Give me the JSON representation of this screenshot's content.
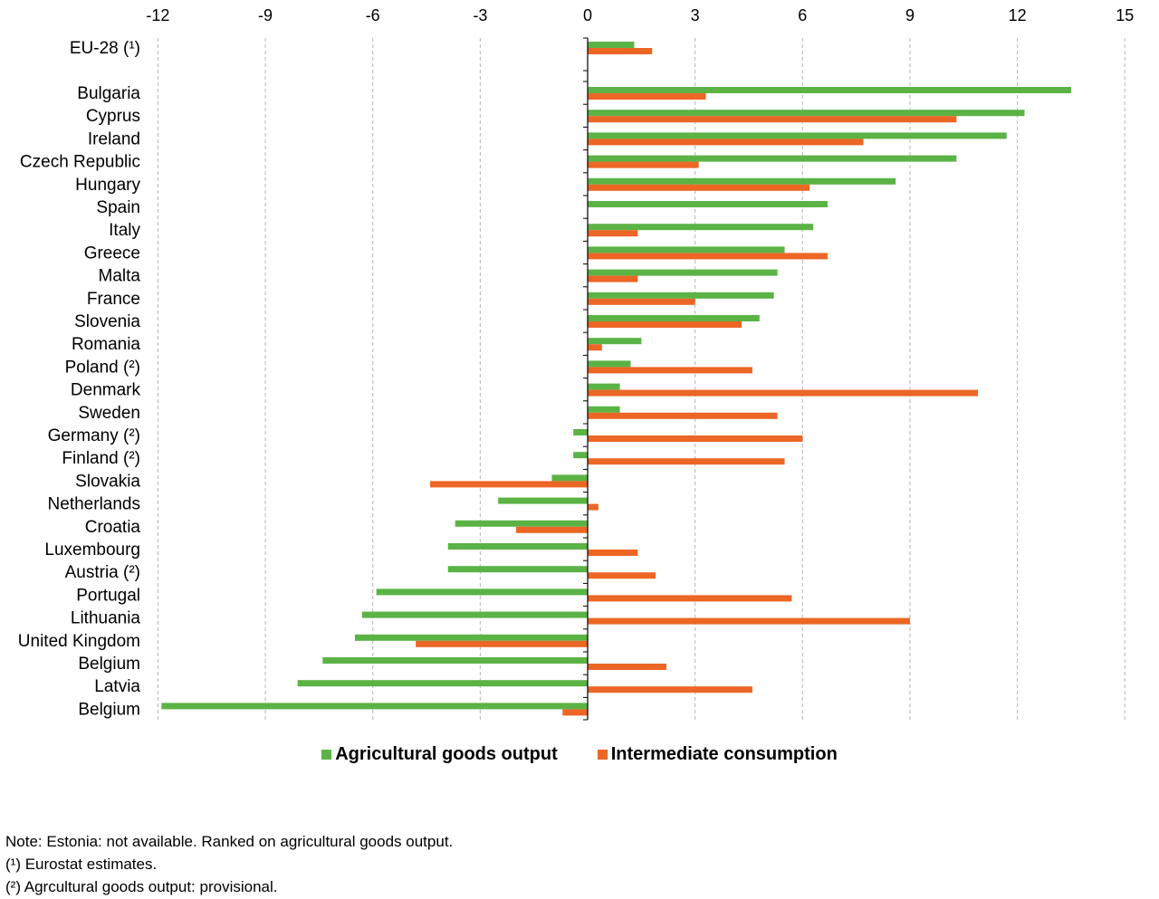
{
  "chart_data": {
    "type": "bar",
    "orientation": "horizontal",
    "categories": [
      "EU-28 (¹)",
      "Bulgaria",
      "Cyprus",
      "Ireland",
      "Czech Republic",
      "Hungary",
      "Spain",
      "Italy",
      "Greece",
      "Malta",
      "France",
      "Slovenia",
      "Romania",
      "Poland (²)",
      "Denmark",
      "Sweden",
      "Germany (²)",
      "Finland (²)",
      "Slovakia",
      "Netherlands",
      "Croatia",
      "Luxembourg",
      "Austria (²)",
      "Portugal",
      "Lithuania",
      "United Kingdom",
      "Belgium",
      "Latvia",
      "Belgium"
    ],
    "series": [
      {
        "name": "Agricultural goods output",
        "color": "#5bb345",
        "values": [
          1.3,
          13.5,
          12.2,
          11.7,
          10.3,
          8.6,
          6.7,
          6.3,
          5.5,
          5.3,
          5.2,
          4.8,
          1.5,
          1.2,
          0.9,
          0.9,
          -0.4,
          -0.4,
          -1.0,
          -2.5,
          -3.7,
          -3.9,
          -3.9,
          -5.9,
          -6.3,
          -6.5,
          -7.4,
          -8.1,
          -11.9
        ]
      },
      {
        "name": "Intermediate consumption",
        "color": "#ec6625",
        "values": [
          1.8,
          3.3,
          10.3,
          7.7,
          3.1,
          6.2,
          0.0,
          1.4,
          6.7,
          1.4,
          3.0,
          4.3,
          0.4,
          4.6,
          10.9,
          5.3,
          6.0,
          5.5,
          -4.4,
          0.3,
          -2.0,
          1.4,
          1.9,
          5.7,
          9.0,
          -4.8,
          2.2,
          4.6,
          -0.7
        ]
      }
    ],
    "x_ticks": [
      "-12",
      "-9",
      "-6",
      "-3",
      "0",
      "3",
      "6",
      "9",
      "12",
      "15"
    ],
    "xlim": [
      -12,
      15
    ],
    "grid": "vertical dashed",
    "legend_position": "bottom-center"
  },
  "legend": {
    "item1": "Agricultural goods output",
    "item2": "Intermediate consumption"
  },
  "notes": {
    "line1": "Note: Estonia: not available. Ranked on agricultural goods output.",
    "line2": "(¹) Eurostat estimates.",
    "line3": "(²) Agrcultural goods output: provisional."
  }
}
